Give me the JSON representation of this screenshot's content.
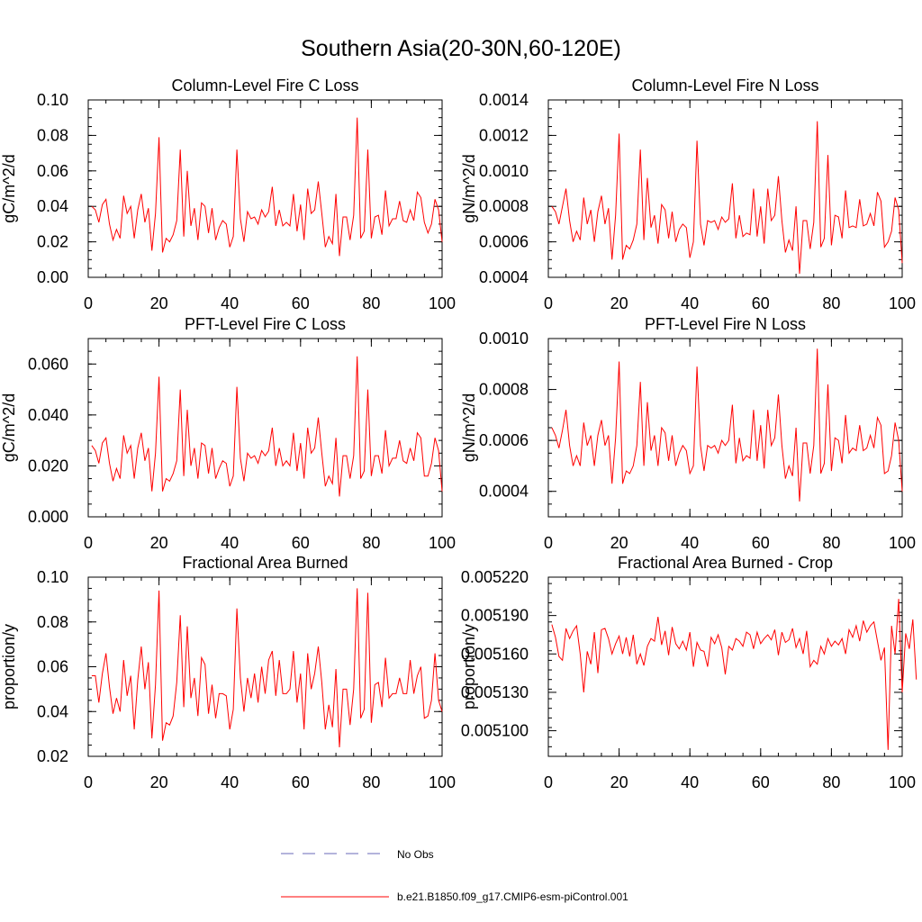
{
  "page": {
    "title": "Southern Asia(20-30N,60-120E)"
  },
  "legend": {
    "items": [
      {
        "label": "No Obs",
        "color": "#6a6ab8",
        "style": "dashed"
      },
      {
        "label": "b.e21.B1850.f09_g17.CMIP6-esm-piControl.001",
        "color": "#ff0000",
        "style": "solid"
      }
    ]
  },
  "chart_data": [
    {
      "type": "line",
      "title": "Column-Level Fire C Loss",
      "ylabel": "gC/m^2/d",
      "xlim": [
        0,
        100
      ],
      "ylim": [
        0,
        0.1
      ],
      "xticks": [
        0,
        20,
        40,
        60,
        80,
        100
      ],
      "xtick_labels": [
        "0",
        "20",
        "40",
        "60",
        "80",
        "100"
      ],
      "yticks": [
        0.0,
        0.02,
        0.04,
        0.06,
        0.08,
        0.1
      ],
      "ytick_labels": [
        "0.00",
        "0.02",
        "0.04",
        "0.06",
        "0.08",
        "0.10"
      ],
      "series": [
        {
          "name": "b.e21.B1850.f09_g17.CMIP6-esm-piControl.001",
          "color": "#ff0000",
          "x_start": 1,
          "values": [
            0.04,
            0.038,
            0.031,
            0.041,
            0.044,
            0.03,
            0.021,
            0.027,
            0.022,
            0.046,
            0.036,
            0.04,
            0.022,
            0.038,
            0.047,
            0.031,
            0.039,
            0.015,
            0.036,
            0.079,
            0.014,
            0.022,
            0.02,
            0.024,
            0.032,
            0.072,
            0.023,
            0.06,
            0.029,
            0.039,
            0.021,
            0.042,
            0.04,
            0.025,
            0.039,
            0.021,
            0.028,
            0.032,
            0.03,
            0.017,
            0.023,
            0.072,
            0.033,
            0.02,
            0.037,
            0.033,
            0.034,
            0.03,
            0.038,
            0.034,
            0.037,
            0.051,
            0.029,
            0.038,
            0.029,
            0.031,
            0.029,
            0.047,
            0.026,
            0.041,
            0.021,
            0.05,
            0.036,
            0.038,
            0.054,
            0.036,
            0.017,
            0.023,
            0.019,
            0.047,
            0.012,
            0.034,
            0.034,
            0.021,
            0.035,
            0.09,
            0.022,
            0.026,
            0.072,
            0.022,
            0.034,
            0.035,
            0.024,
            0.049,
            0.029,
            0.033,
            0.033,
            0.043,
            0.032,
            0.031,
            0.038,
            0.032,
            0.048,
            0.045,
            0.031,
            0.025,
            0.03,
            0.044,
            0.038,
            0.02
          ]
        }
      ]
    },
    {
      "type": "line",
      "title": "Column-Level Fire N Loss",
      "ylabel": "gN/m^2/d",
      "xlim": [
        0,
        100
      ],
      "ylim": [
        0.0004,
        0.0014
      ],
      "xticks": [
        0,
        20,
        40,
        60,
        80,
        100
      ],
      "xtick_labels": [
        "0",
        "20",
        "40",
        "60",
        "80",
        "100"
      ],
      "yticks": [
        0.0004,
        0.0006,
        0.0008,
        0.001,
        0.0012,
        0.0014
      ],
      "ytick_labels": [
        "0.0004",
        "0.0006",
        "0.0008",
        "0.0010",
        "0.0012",
        "0.0014"
      ],
      "series": [
        {
          "name": "b.e21.B1850.f09_g17.CMIP6-esm-piControl.001",
          "color": "#ff0000",
          "x_start": 1,
          "values": [
            0.0008,
            0.00077,
            0.0007,
            0.0008,
            0.0009,
            0.00072,
            0.0006,
            0.00066,
            0.00061,
            0.00085,
            0.0007,
            0.00078,
            0.0006,
            0.00077,
            0.00086,
            0.0007,
            0.00079,
            0.0005,
            0.00075,
            0.00121,
            0.0005,
            0.00058,
            0.00056,
            0.00061,
            0.0007,
            0.00112,
            0.00061,
            0.00096,
            0.00068,
            0.00075,
            0.00059,
            0.00081,
            0.00078,
            0.00062,
            0.00077,
            0.0006,
            0.00067,
            0.0007,
            0.00068,
            0.00051,
            0.0006,
            0.00117,
            0.0007,
            0.00058,
            0.00072,
            0.00071,
            0.00072,
            0.00067,
            0.00074,
            0.00071,
            0.00073,
            0.00093,
            0.00062,
            0.00075,
            0.00063,
            0.00065,
            0.00064,
            0.0009,
            0.00063,
            0.0008,
            0.00059,
            0.0009,
            0.00072,
            0.00075,
            0.00097,
            0.00072,
            0.00054,
            0.00061,
            0.00055,
            0.0008,
            0.00042,
            0.00072,
            0.00072,
            0.00056,
            0.00071,
            0.00128,
            0.00057,
            0.00062,
            0.00109,
            0.00058,
            0.00075,
            0.00074,
            0.00062,
            0.00089,
            0.00068,
            0.00069,
            0.00068,
            0.00084,
            0.00069,
            0.0007,
            0.00076,
            0.00069,
            0.00088,
            0.00083,
            0.00057,
            0.0006,
            0.00066,
            0.00085,
            0.00078,
            0.00048
          ]
        }
      ]
    },
    {
      "type": "line",
      "title": "PFT-Level Fire C Loss",
      "ylabel": "gC/m^2/d",
      "xlim": [
        0,
        100
      ],
      "ylim": [
        0,
        0.07
      ],
      "xticks": [
        0,
        20,
        40,
        60,
        80,
        100
      ],
      "xtick_labels": [
        "0",
        "20",
        "40",
        "60",
        "80",
        "100"
      ],
      "yticks": [
        0.0,
        0.02,
        0.04,
        0.06
      ],
      "ytick_labels": [
        "0.000",
        "0.020",
        "0.040",
        "0.060"
      ],
      "series": [
        {
          "name": "b.e21.B1850.f09_g17.CMIP6-esm-piControl.001",
          "color": "#ff0000",
          "x_start": 1,
          "values": [
            0.028,
            0.026,
            0.021,
            0.029,
            0.031,
            0.021,
            0.014,
            0.019,
            0.015,
            0.032,
            0.025,
            0.028,
            0.015,
            0.027,
            0.033,
            0.022,
            0.027,
            0.01,
            0.025,
            0.055,
            0.01,
            0.015,
            0.014,
            0.017,
            0.022,
            0.05,
            0.016,
            0.042,
            0.02,
            0.027,
            0.015,
            0.029,
            0.028,
            0.017,
            0.027,
            0.015,
            0.019,
            0.022,
            0.021,
            0.012,
            0.016,
            0.051,
            0.023,
            0.014,
            0.025,
            0.023,
            0.024,
            0.021,
            0.026,
            0.024,
            0.026,
            0.035,
            0.02,
            0.027,
            0.02,
            0.022,
            0.02,
            0.033,
            0.018,
            0.029,
            0.015,
            0.035,
            0.025,
            0.027,
            0.039,
            0.025,
            0.012,
            0.016,
            0.013,
            0.031,
            0.008,
            0.024,
            0.024,
            0.015,
            0.024,
            0.063,
            0.015,
            0.018,
            0.05,
            0.016,
            0.024,
            0.024,
            0.017,
            0.034,
            0.02,
            0.023,
            0.023,
            0.03,
            0.022,
            0.021,
            0.027,
            0.022,
            0.033,
            0.031,
            0.016,
            0.016,
            0.021,
            0.031,
            0.026,
            0.01
          ]
        }
      ]
    },
    {
      "type": "line",
      "title": "PFT-Level Fire N Loss",
      "ylabel": "gN/m^2/d",
      "xlim": [
        0,
        100
      ],
      "ylim": [
        0.0003,
        0.001
      ],
      "xticks": [
        0,
        20,
        40,
        60,
        80,
        100
      ],
      "xtick_labels": [
        "0",
        "20",
        "40",
        "60",
        "80",
        "100"
      ],
      "yticks": [
        0.0004,
        0.0006,
        0.0008,
        0.001
      ],
      "ytick_labels": [
        "0.0004",
        "0.0006",
        "0.0008",
        "0.0010"
      ],
      "series": [
        {
          "name": "b.e21.B1850.f09_g17.CMIP6-esm-piControl.001",
          "color": "#ff0000",
          "x_start": 1,
          "values": [
            0.00065,
            0.00062,
            0.00057,
            0.00064,
            0.00072,
            0.00058,
            0.0005,
            0.00054,
            0.0005,
            0.00067,
            0.00058,
            0.00062,
            0.0005,
            0.00062,
            0.00068,
            0.00058,
            0.00062,
            0.00043,
            0.00061,
            0.00091,
            0.00043,
            0.00048,
            0.00047,
            0.0005,
            0.00058,
            0.00083,
            0.0005,
            0.00075,
            0.00056,
            0.00062,
            0.0005,
            0.00065,
            0.00063,
            0.00052,
            0.00062,
            0.0005,
            0.00055,
            0.00058,
            0.00056,
            0.00047,
            0.0005,
            0.00089,
            0.00058,
            0.00048,
            0.00058,
            0.00057,
            0.00058,
            0.00055,
            0.0006,
            0.00058,
            0.0006,
            0.00074,
            0.00051,
            0.00061,
            0.00052,
            0.00054,
            0.00053,
            0.00072,
            0.00052,
            0.00066,
            0.00049,
            0.00072,
            0.00058,
            0.00061,
            0.00078,
            0.00058,
            0.00045,
            0.0005,
            0.00046,
            0.00065,
            0.00036,
            0.00059,
            0.00059,
            0.00047,
            0.00058,
            0.00096,
            0.00047,
            0.00051,
            0.00082,
            0.00048,
            0.00061,
            0.0006,
            0.00051,
            0.0007,
            0.00055,
            0.00057,
            0.00056,
            0.00066,
            0.00056,
            0.00057,
            0.00062,
            0.00057,
            0.00069,
            0.00066,
            0.00047,
            0.00048,
            0.00054,
            0.00067,
            0.0006,
            0.0004
          ]
        }
      ]
    },
    {
      "type": "line",
      "title": "Fractional Area Burned",
      "ylabel": "proportion/y",
      "xlim": [
        0,
        100
      ],
      "ylim": [
        0.02,
        0.1
      ],
      "xticks": [
        0,
        20,
        40,
        60,
        80,
        100
      ],
      "xtick_labels": [
        "0",
        "20",
        "40",
        "60",
        "80",
        "100"
      ],
      "yticks": [
        0.02,
        0.04,
        0.06,
        0.08,
        0.1
      ],
      "ytick_labels": [
        "0.02",
        "0.04",
        "0.06",
        "0.08",
        "0.10"
      ],
      "series": [
        {
          "name": "b.e21.B1850.f09_g17.CMIP6-esm-piControl.001",
          "color": "#ff0000",
          "x_start": 1,
          "values": [
            0.056,
            0.056,
            0.044,
            0.057,
            0.066,
            0.051,
            0.039,
            0.046,
            0.04,
            0.063,
            0.047,
            0.056,
            0.032,
            0.054,
            0.069,
            0.05,
            0.062,
            0.028,
            0.052,
            0.094,
            0.027,
            0.035,
            0.034,
            0.038,
            0.053,
            0.083,
            0.042,
            0.078,
            0.046,
            0.055,
            0.038,
            0.064,
            0.061,
            0.039,
            0.052,
            0.037,
            0.048,
            0.048,
            0.047,
            0.032,
            0.041,
            0.086,
            0.055,
            0.04,
            0.055,
            0.046,
            0.057,
            0.044,
            0.06,
            0.048,
            0.063,
            0.067,
            0.047,
            0.063,
            0.048,
            0.048,
            0.05,
            0.067,
            0.044,
            0.057,
            0.032,
            0.066,
            0.05,
            0.057,
            0.069,
            0.053,
            0.032,
            0.043,
            0.033,
            0.059,
            0.024,
            0.05,
            0.05,
            0.034,
            0.05,
            0.095,
            0.037,
            0.041,
            0.093,
            0.035,
            0.052,
            0.053,
            0.042,
            0.064,
            0.046,
            0.048,
            0.048,
            0.055,
            0.048,
            0.048,
            0.063,
            0.048,
            0.056,
            0.06,
            0.037,
            0.038,
            0.045,
            0.066,
            0.045,
            0.04
          ]
        }
      ]
    },
    {
      "type": "line",
      "title": "Fractional Area Burned - Crop",
      "ylabel": "proportion/y",
      "xlim": [
        0,
        100
      ],
      "ylim": [
        0.00508,
        0.00522
      ],
      "xticks": [
        0,
        20,
        40,
        60,
        80,
        100
      ],
      "xtick_labels": [
        "0",
        "20",
        "40",
        "60",
        "80",
        "100"
      ],
      "yticks": [
        0.0051,
        0.00513,
        0.00516,
        0.00519,
        0.00522
      ],
      "ytick_labels": [
        "0.005100",
        "0.005130",
        "0.005160",
        "0.005190",
        "0.005220"
      ],
      "series": [
        {
          "name": "b.e21.B1850.f09_g17.CMIP6-esm-piControl.001",
          "color": "#ff0000",
          "x_start": 1,
          "values": [
            0.005183,
            0.005173,
            0.005158,
            0.005155,
            0.00518,
            0.005172,
            0.005178,
            0.005182,
            0.00516,
            0.00513,
            0.005162,
            0.005152,
            0.005177,
            0.005145,
            0.005179,
            0.00518,
            0.005172,
            0.00516,
            0.005168,
            0.005174,
            0.00516,
            0.005173,
            0.005158,
            0.005175,
            0.005152,
            0.00516,
            0.005151,
            0.005166,
            0.005172,
            0.00517,
            0.005189,
            0.005167,
            0.005178,
            0.005159,
            0.005181,
            0.005168,
            0.005164,
            0.00517,
            0.005163,
            0.005177,
            0.00515,
            0.005169,
            0.005163,
            0.005162,
            0.00515,
            0.005173,
            0.005168,
            0.005175,
            0.005165,
            0.005144,
            0.005166,
            0.005163,
            0.005172,
            0.00517,
            0.005166,
            0.005177,
            0.005175,
            0.005164,
            0.005177,
            0.005168,
            0.005172,
            0.005175,
            0.005171,
            0.005179,
            0.005159,
            0.005177,
            0.005169,
            0.005171,
            0.00518,
            0.005165,
            0.005172,
            0.00516,
            0.005178,
            0.00515,
            0.005155,
            0.005152,
            0.005166,
            0.00516,
            0.005172,
            0.005166,
            0.00517,
            0.005167,
            0.005172,
            0.00516,
            0.005179,
            0.005173,
            0.005182,
            0.00517,
            0.005186,
            0.005177,
            0.005182,
            0.005185,
            0.00517,
            0.005155,
            0.005165,
            0.005085,
            0.005182,
            0.00516,
            0.005203,
            0.00513,
            0.005176,
            0.005164,
            0.005187,
            0.00514
          ]
        }
      ]
    }
  ]
}
